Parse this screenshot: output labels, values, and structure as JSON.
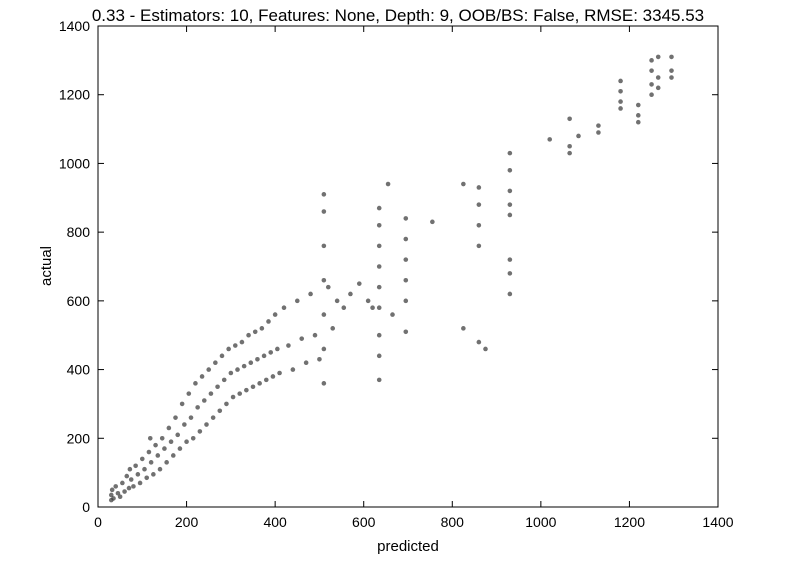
{
  "chart_data": {
    "type": "scatter",
    "title": "0.33 - Estimators: 10, Features: None, Depth: 9, OOB/BS: False, RMSE: 3345.53",
    "xlabel": "predicted",
    "ylabel": "actual",
    "xlim": [
      0,
      1400
    ],
    "ylim": [
      0,
      1400
    ],
    "xticks": [
      "0",
      "200",
      "400",
      "600",
      "800",
      "1000",
      "1200",
      "1400"
    ],
    "yticks": [
      "0",
      "200",
      "400",
      "600",
      "800",
      "1000",
      "1200",
      "1400"
    ],
    "grid": false,
    "legend": "none",
    "marker_color": "#3a3a3a",
    "series": [
      {
        "points": [
          [
            30,
            20
          ],
          [
            30,
            35
          ],
          [
            32,
            50
          ],
          [
            35,
            25
          ],
          [
            40,
            60
          ],
          [
            45,
            40
          ],
          [
            50,
            30
          ],
          [
            55,
            70
          ],
          [
            60,
            45
          ],
          [
            65,
            90
          ],
          [
            70,
            55
          ],
          [
            72,
            110
          ],
          [
            75,
            80
          ],
          [
            80,
            60
          ],
          [
            85,
            120
          ],
          [
            90,
            95
          ],
          [
            95,
            70
          ],
          [
            100,
            140
          ],
          [
            105,
            110
          ],
          [
            110,
            85
          ],
          [
            115,
            160
          ],
          [
            118,
            200
          ],
          [
            120,
            130
          ],
          [
            125,
            95
          ],
          [
            130,
            180
          ],
          [
            135,
            150
          ],
          [
            140,
            110
          ],
          [
            145,
            200
          ],
          [
            150,
            170
          ],
          [
            155,
            130
          ],
          [
            160,
            230
          ],
          [
            165,
            190
          ],
          [
            170,
            150
          ],
          [
            175,
            260
          ],
          [
            180,
            210
          ],
          [
            185,
            170
          ],
          [
            190,
            300
          ],
          [
            195,
            240
          ],
          [
            200,
            190
          ],
          [
            205,
            330
          ],
          [
            210,
            260
          ],
          [
            215,
            200
          ],
          [
            220,
            360
          ],
          [
            225,
            290
          ],
          [
            230,
            220
          ],
          [
            235,
            380
          ],
          [
            240,
            310
          ],
          [
            245,
            240
          ],
          [
            250,
            400
          ],
          [
            255,
            330
          ],
          [
            260,
            260
          ],
          [
            265,
            420
          ],
          [
            270,
            350
          ],
          [
            275,
            280
          ],
          [
            280,
            440
          ],
          [
            285,
            370
          ],
          [
            290,
            300
          ],
          [
            295,
            460
          ],
          [
            300,
            390
          ],
          [
            305,
            320
          ],
          [
            310,
            470
          ],
          [
            315,
            400
          ],
          [
            320,
            330
          ],
          [
            325,
            480
          ],
          [
            330,
            410
          ],
          [
            335,
            340
          ],
          [
            340,
            500
          ],
          [
            345,
            420
          ],
          [
            350,
            350
          ],
          [
            355,
            510
          ],
          [
            360,
            430
          ],
          [
            365,
            360
          ],
          [
            370,
            520
          ],
          [
            375,
            440
          ],
          [
            380,
            370
          ],
          [
            385,
            540
          ],
          [
            390,
            450
          ],
          [
            395,
            380
          ],
          [
            400,
            560
          ],
          [
            405,
            460
          ],
          [
            410,
            390
          ],
          [
            420,
            580
          ],
          [
            430,
            470
          ],
          [
            440,
            400
          ],
          [
            450,
            600
          ],
          [
            460,
            490
          ],
          [
            470,
            420
          ],
          [
            480,
            620
          ],
          [
            490,
            500
          ],
          [
            500,
            430
          ],
          [
            510,
            910
          ],
          [
            510,
            860
          ],
          [
            510,
            760
          ],
          [
            510,
            660
          ],
          [
            510,
            560
          ],
          [
            510,
            460
          ],
          [
            510,
            360
          ],
          [
            520,
            640
          ],
          [
            530,
            520
          ],
          [
            540,
            600
          ],
          [
            555,
            580
          ],
          [
            570,
            620
          ],
          [
            590,
            650
          ],
          [
            610,
            600
          ],
          [
            620,
            580
          ],
          [
            635,
            870
          ],
          [
            635,
            820
          ],
          [
            635,
            760
          ],
          [
            635,
            700
          ],
          [
            635,
            640
          ],
          [
            635,
            580
          ],
          [
            635,
            500
          ],
          [
            635,
            440
          ],
          [
            635,
            370
          ],
          [
            655,
            940
          ],
          [
            665,
            560
          ],
          [
            695,
            840
          ],
          [
            695,
            780
          ],
          [
            695,
            720
          ],
          [
            695,
            660
          ],
          [
            695,
            600
          ],
          [
            695,
            510
          ],
          [
            755,
            830
          ],
          [
            825,
            940
          ],
          [
            825,
            520
          ],
          [
            860,
            930
          ],
          [
            860,
            880
          ],
          [
            860,
            820
          ],
          [
            860,
            760
          ],
          [
            860,
            480
          ],
          [
            875,
            460
          ],
          [
            930,
            1030
          ],
          [
            930,
            980
          ],
          [
            930,
            920
          ],
          [
            930,
            880
          ],
          [
            930,
            850
          ],
          [
            930,
            720
          ],
          [
            930,
            680
          ],
          [
            930,
            620
          ],
          [
            1020,
            1070
          ],
          [
            1065,
            1130
          ],
          [
            1065,
            1050
          ],
          [
            1065,
            1030
          ],
          [
            1085,
            1080
          ],
          [
            1130,
            1110
          ],
          [
            1130,
            1090
          ],
          [
            1180,
            1240
          ],
          [
            1180,
            1210
          ],
          [
            1180,
            1180
          ],
          [
            1180,
            1160
          ],
          [
            1220,
            1170
          ],
          [
            1220,
            1140
          ],
          [
            1220,
            1120
          ],
          [
            1250,
            1300
          ],
          [
            1250,
            1270
          ],
          [
            1250,
            1230
          ],
          [
            1250,
            1200
          ],
          [
            1265,
            1310
          ],
          [
            1265,
            1250
          ],
          [
            1265,
            1220
          ],
          [
            1295,
            1310
          ],
          [
            1295,
            1270
          ],
          [
            1295,
            1250
          ]
        ]
      }
    ]
  }
}
